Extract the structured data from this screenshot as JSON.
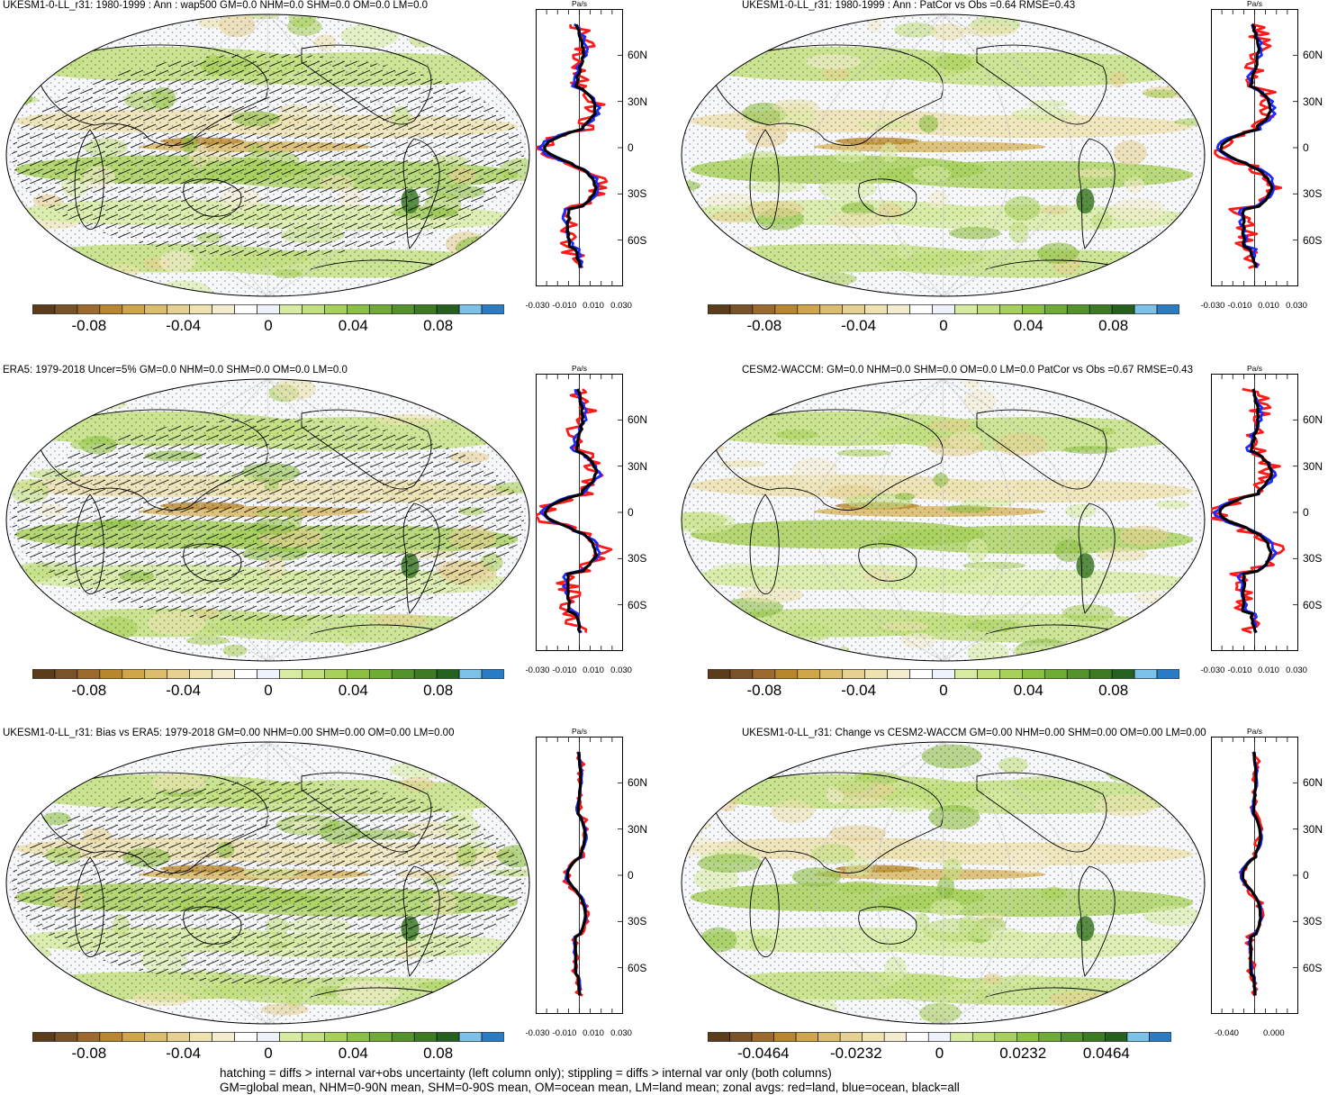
{
  "units": "Pa/s",
  "colors": {
    "palette": [
      "#5b3d1c",
      "#7a5228",
      "#9b6a2c",
      "#b8862c",
      "#d0a64a",
      "#dcbd6e",
      "#e6d192",
      "#ede2b0",
      "#f3ecce",
      "#ffffff",
      "#eef2fa",
      "#d7eba2",
      "#c2e07e",
      "#a8d15c",
      "#8cc043",
      "#6fab35",
      "#54922b",
      "#3d7a24",
      "#26601f",
      "#7cc2e8",
      "#2a7cc5"
    ],
    "red_land": "#ff1a1a",
    "blue_ocean": "#1a2bff",
    "black_all": "#000000"
  },
  "panels": [
    {
      "title": "UKESM1-0-LL_r31: 1980-1999 : Ann : wap500 GM=0.0 NHM=0.0 SHM=0.0 OM=0.0 LM=0.0",
      "colorbar_labels": [
        "-0.08",
        "-0.04",
        "0",
        "0.04",
        "0.08"
      ],
      "xticks": [
        "-0.030",
        "-0.010",
        "0.010",
        "0.030"
      ],
      "lat_labels": [
        "60N",
        "30N",
        "0",
        "30S",
        "60S"
      ],
      "hatching": true
    },
    {
      "title": "UKESM1-0-LL_r31: 1980-1999 : Ann : PatCor vs Obs =0.64 RMSE=0.43",
      "colorbar_labels": [
        "-0.08",
        "-0.04",
        "0",
        "0.04",
        "0.08"
      ],
      "xticks": [
        "-0.030",
        "-0.010",
        "0.010",
        "0.030"
      ],
      "lat_labels": [
        "60N",
        "30N",
        "0",
        "30S",
        "60S"
      ],
      "hatching": false
    },
    {
      "title": "ERA5: 1979-2018 Uncer=5% GM=0.0 NHM=0.0 SHM=0.0 OM=0.0 LM=0.0",
      "colorbar_labels": [
        "-0.08",
        "-0.04",
        "0",
        "0.04",
        "0.08"
      ],
      "xticks": [
        "-0.030",
        "-0.010",
        "0.010",
        "0.030"
      ],
      "lat_labels": [
        "60N",
        "30N",
        "0",
        "30S",
        "60S"
      ],
      "hatching": true
    },
    {
      "title": "CESM2-WACCM: GM=0.0 NHM=0.0 SHM=0.0 OM=0.0 LM=0.0 PatCor vs Obs =0.67 RMSE=0.43",
      "colorbar_labels": [
        "-0.08",
        "-0.04",
        "0",
        "0.04",
        "0.08"
      ],
      "xticks": [
        "-0.030",
        "-0.010",
        "0.010",
        "0.030"
      ],
      "lat_labels": [
        "60N",
        "30N",
        "0",
        "30S",
        "60S"
      ],
      "hatching": false
    },
    {
      "title": "UKESM1-0-LL_r31: Bias vs ERA5: 1979-2018 GM=0.00 NHM=0.00 SHM=0.00 OM=0.00 LM=0.00",
      "colorbar_labels": [
        "-0.08",
        "-0.04",
        "0",
        "0.04",
        "0.08"
      ],
      "xticks": [
        "-0.030",
        "-0.010",
        "0.010",
        "0.030"
      ],
      "lat_labels": [
        "60N",
        "30N",
        "0",
        "30S",
        "60S"
      ],
      "hatching": true
    },
    {
      "title": "UKESM1-0-LL_r31: Change vs CESM2-WACCM GM=0.00 NHM=0.00 SHM=0.00 OM=0.00 LM=0.00",
      "colorbar_labels": [
        "-0.0464",
        "-0.0232",
        "0",
        "0.0232",
        "0.0464"
      ],
      "xticks": [
        "-0.040",
        "0.000"
      ],
      "lat_labels": [
        "60N",
        "30N",
        "0",
        "30S",
        "60S"
      ],
      "hatching": false
    }
  ],
  "footer": {
    "line1": "hatching = diffs > internal var+obs uncertainty (left column only); stippling = diffs > internal var only (both columns)",
    "line2": "GM=global mean, NHM=0-90N mean, SHM=0-90S mean, OM=ocean mean, LM=land mean; zonal avgs: red=land, blue=ocean, black=all"
  }
}
